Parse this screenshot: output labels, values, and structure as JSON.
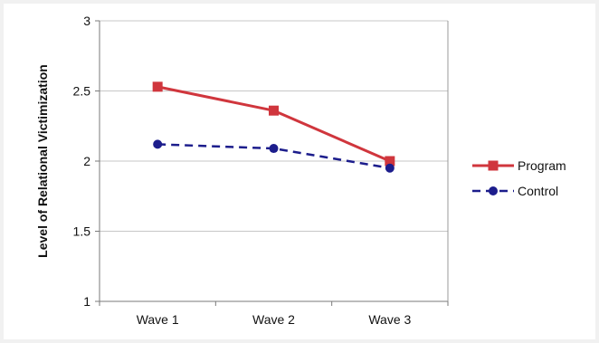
{
  "chart_data": {
    "type": "line",
    "title": "",
    "xlabel": "",
    "ylabel": "Level of Relational Victimization",
    "categories": [
      "Wave 1",
      "Wave 2",
      "Wave 3"
    ],
    "ylim": [
      1,
      3
    ],
    "yticks": [
      1,
      1.5,
      2,
      2.5,
      3
    ],
    "ytick_labels": [
      "1",
      "1.5",
      "2",
      "2.5",
      "3"
    ],
    "grid": true,
    "legend_position": "right",
    "series": [
      {
        "name": "Program",
        "values": [
          2.53,
          2.36,
          2.0
        ],
        "color": "#d0363d",
        "marker": "square",
        "line_style": "solid"
      },
      {
        "name": "Control",
        "values": [
          2.12,
          2.09,
          1.95
        ],
        "color": "#1c1d8c",
        "marker": "circle",
        "line_style": "dashed"
      }
    ]
  }
}
